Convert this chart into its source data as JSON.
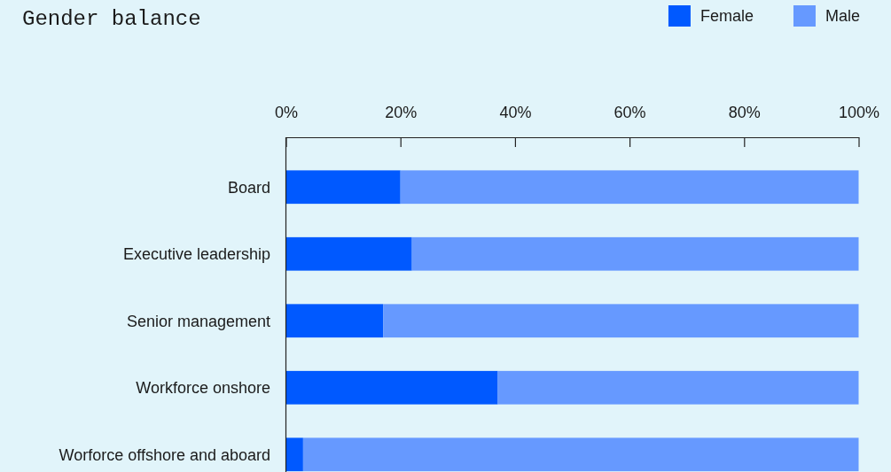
{
  "chart_data": {
    "type": "bar",
    "title": "Gender balance",
    "orientation": "horizontal",
    "stacked": true,
    "categories": [
      "Board",
      "Executive leadership",
      "Senior management",
      "Workforce onshore",
      "Worforce offshore and aboard"
    ],
    "series": [
      {
        "name": "Female",
        "color": "#0059ff",
        "values": [
          20,
          22,
          17,
          37,
          3
        ]
      },
      {
        "name": "Male",
        "color": "#6699ff",
        "values": [
          80,
          78,
          83,
          63,
          97
        ]
      }
    ],
    "xlim": [
      0,
      100
    ],
    "xticks": [
      {
        "value": 0,
        "label": "0%"
      },
      {
        "value": 20,
        "label": "20%"
      },
      {
        "value": 40,
        "label": "40%"
      },
      {
        "value": 60,
        "label": "60%"
      },
      {
        "value": 80,
        "label": "80%"
      },
      {
        "value": 100,
        "label": "100%"
      }
    ],
    "legend": "top right",
    "grid": false
  }
}
